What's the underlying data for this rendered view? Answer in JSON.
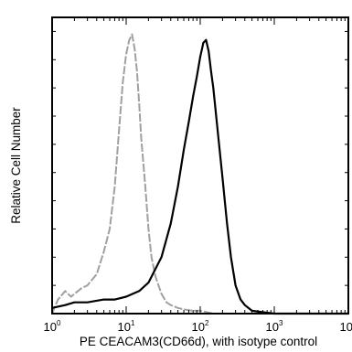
{
  "chart_data": {
    "type": "line",
    "title": "",
    "xlabel": "PE CEACAM3(CD66d),  with isotype control",
    "ylabel": "Relative Cell Number",
    "xscale": "log",
    "xlim": [
      1,
      10000
    ],
    "ylim": [
      0,
      1.05
    ],
    "x_ticks": [
      {
        "base": "10",
        "exp": "0"
      },
      {
        "base": "10",
        "exp": "1"
      },
      {
        "base": "10",
        "exp": "2"
      },
      {
        "base": "10",
        "exp": "3"
      },
      {
        "base": "10",
        "exp": "4"
      }
    ],
    "grid": false,
    "legend": "none",
    "series": [
      {
        "color": "#a0a0a0",
        "style": "dashed-upper",
        "x": [
          1,
          1.2,
          1.5,
          1.8,
          2,
          2.5,
          3,
          4,
          5,
          6,
          7,
          8,
          9,
          10,
          11,
          12,
          13,
          14,
          15,
          16,
          18,
          20,
          22,
          25,
          30,
          35,
          40,
          50,
          60,
          80,
          100,
          150,
          200,
          300,
          10000
        ],
        "y": [
          0.0,
          0.05,
          0.08,
          0.06,
          0.07,
          0.09,
          0.1,
          0.14,
          0.22,
          0.3,
          0.45,
          0.65,
          0.82,
          0.92,
          0.97,
          0.99,
          0.94,
          0.86,
          0.74,
          0.62,
          0.46,
          0.3,
          0.2,
          0.13,
          0.07,
          0.04,
          0.03,
          0.02,
          0.015,
          0.01,
          0.01,
          0.0,
          0.0,
          0.0,
          0.0
        ]
      },
      {
        "color": "#000000",
        "style": "solid",
        "x": [
          1,
          1.5,
          2,
          3,
          5,
          7,
          10,
          15,
          20,
          30,
          40,
          50,
          60,
          70,
          80,
          90,
          100,
          110,
          120,
          130,
          140,
          150,
          170,
          200,
          230,
          260,
          300,
          350,
          400,
          500,
          700,
          1000,
          10000
        ],
        "y": [
          0.02,
          0.03,
          0.04,
          0.04,
          0.05,
          0.05,
          0.06,
          0.08,
          0.11,
          0.2,
          0.32,
          0.45,
          0.58,
          0.68,
          0.77,
          0.84,
          0.91,
          0.96,
          0.97,
          0.93,
          0.86,
          0.8,
          0.66,
          0.48,
          0.32,
          0.2,
          0.1,
          0.05,
          0.03,
          0.01,
          0.005,
          0.0,
          0.0
        ]
      }
    ]
  }
}
